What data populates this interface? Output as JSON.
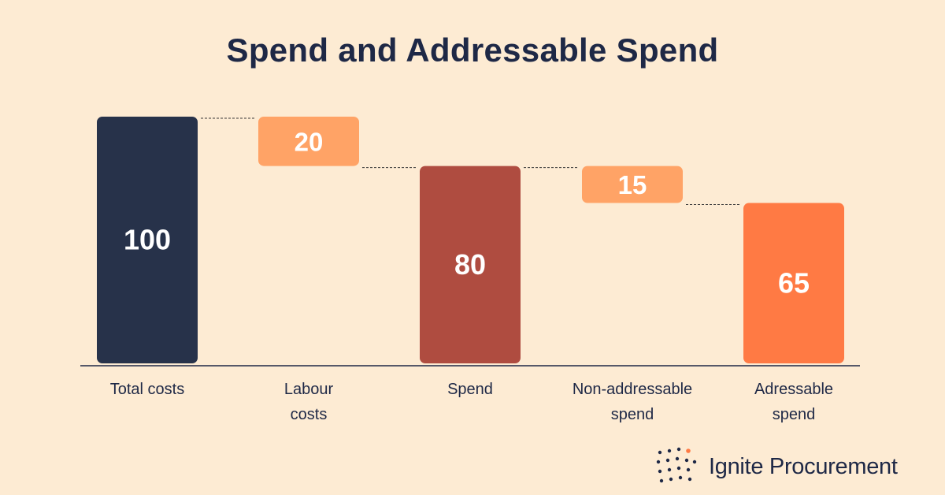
{
  "chart_data": {
    "type": "bar",
    "subtype": "waterfall",
    "title": "Spend and Addressable Spend",
    "categories": [
      [
        "Total costs"
      ],
      [
        "Labour",
        "costs"
      ],
      [
        "Spend"
      ],
      [
        "Non-addressable",
        "spend"
      ],
      [
        "Adressable",
        "spend"
      ]
    ],
    "values": [
      100,
      20,
      80,
      15,
      65
    ],
    "bar_kind": [
      "total",
      "decrease",
      "total",
      "decrease",
      "total"
    ],
    "colors": [
      "#27324A",
      "#FFA366",
      "#AF4C40",
      "#FFA366",
      "#FF7A44"
    ],
    "connector_lines": true,
    "xlabel": "",
    "ylabel": "",
    "ylim": [
      0,
      100
    ],
    "grid": false
  },
  "brand": {
    "name": "Ignite Procurement",
    "text_color": "#1E2846",
    "accent_color": "#FF7A44"
  }
}
